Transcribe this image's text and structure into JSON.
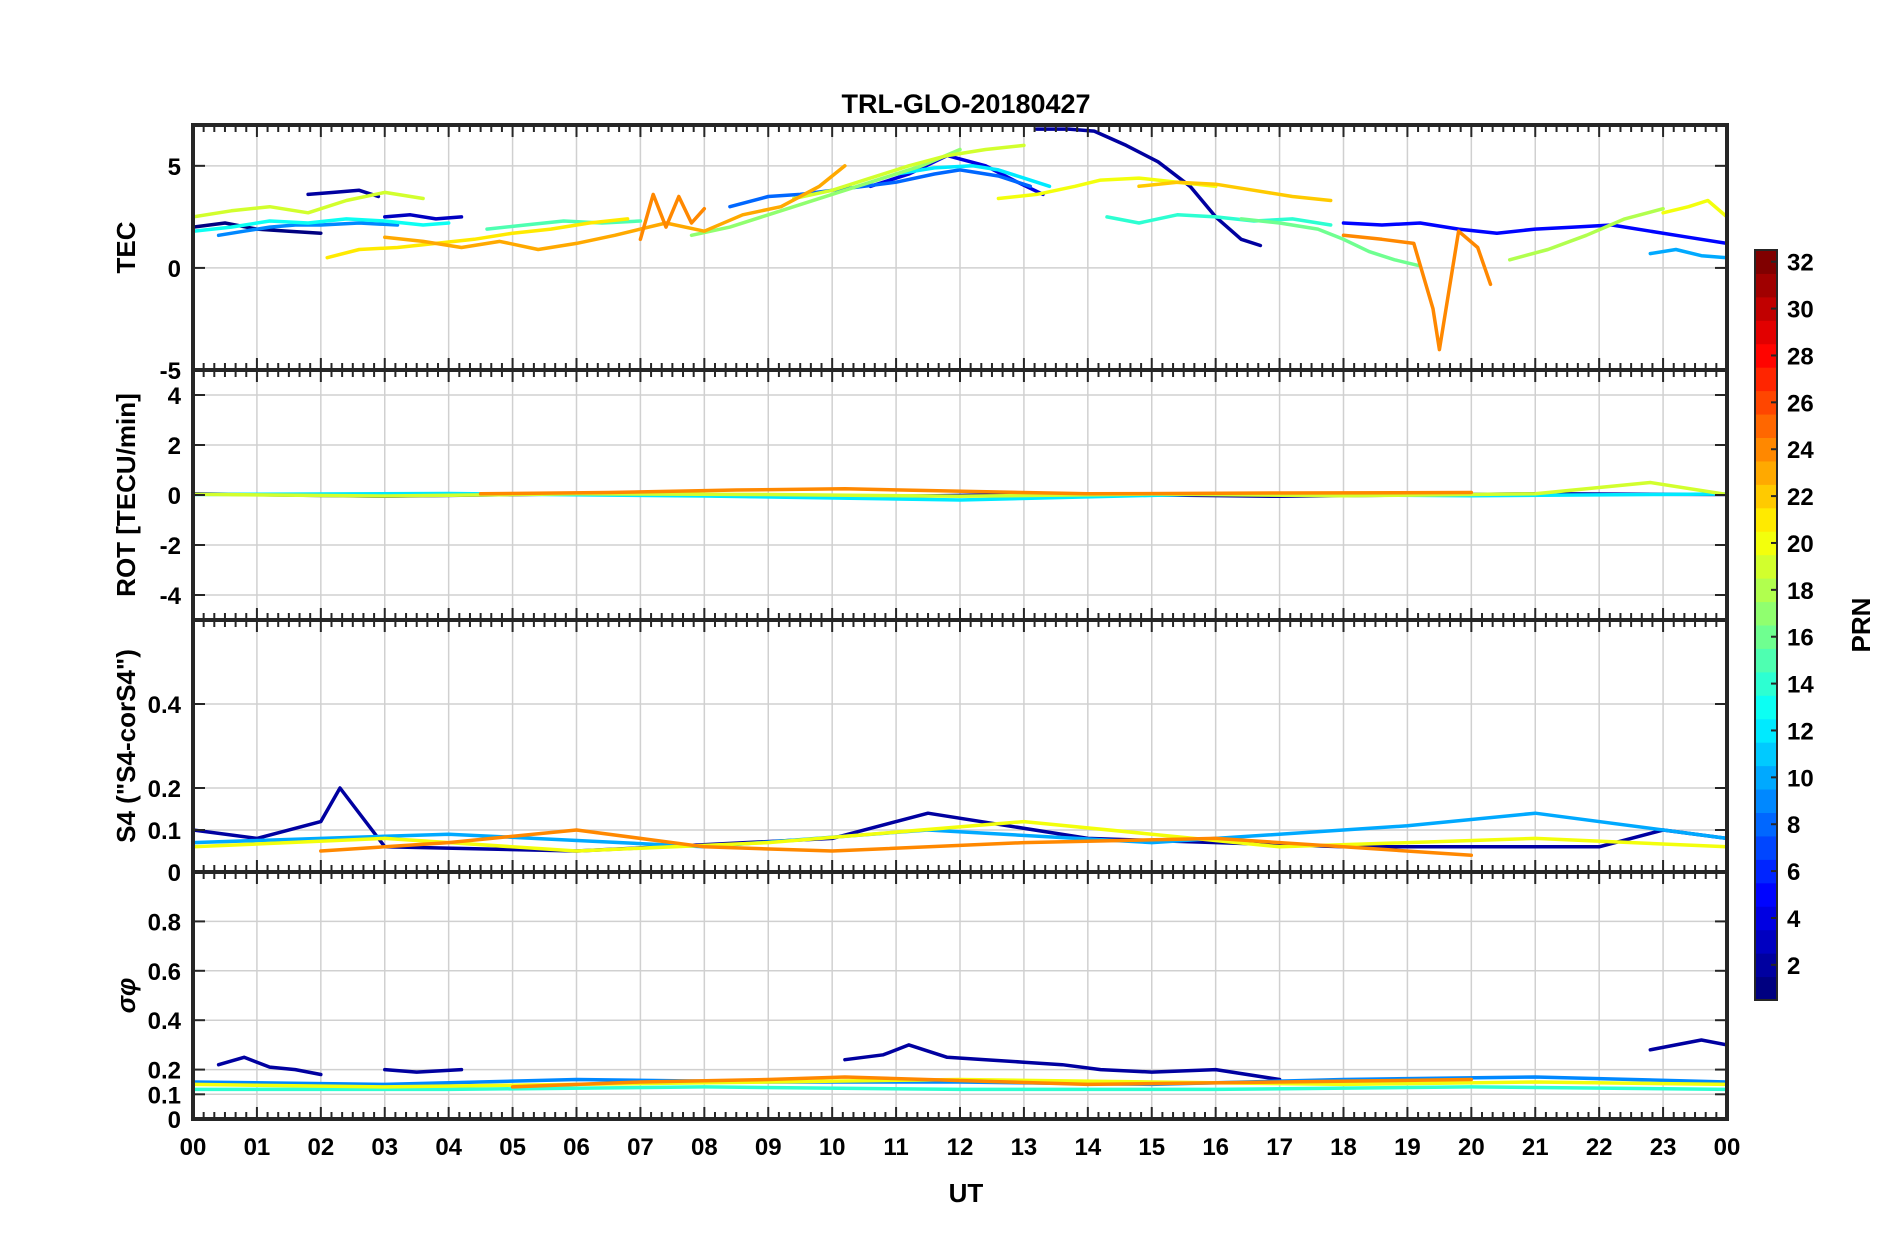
{
  "figure": {
    "title": "TRL-GLO-20180427",
    "xlabel": "UT",
    "x_tick_labels": [
      "00",
      "01",
      "02",
      "03",
      "04",
      "05",
      "06",
      "07",
      "08",
      "09",
      "10",
      "11",
      "12",
      "13",
      "14",
      "15",
      "16",
      "17",
      "18",
      "19",
      "20",
      "21",
      "22",
      "23",
      "00"
    ],
    "colorbar": {
      "label": "PRN",
      "range": [
        1,
        32
      ],
      "tick_labels": [
        "2",
        "4",
        "6",
        "8",
        "10",
        "12",
        "14",
        "16",
        "18",
        "20",
        "22",
        "24",
        "26",
        "28",
        "30",
        "32"
      ],
      "colormap": "jet"
    }
  },
  "chart_data": [
    {
      "id": "tec",
      "type": "line",
      "ylabel": "TEC",
      "xlim": [
        0,
        24
      ],
      "ylim": [
        -5,
        7
      ],
      "yticks": [
        -5,
        0,
        5
      ],
      "grid": true,
      "series": [
        {
          "prn": 1,
          "x": [
            0.0,
            0.5,
            1.0,
            1.5,
            2.0
          ],
          "y": [
            2.0,
            2.2,
            1.9,
            1.8,
            1.7
          ]
        },
        {
          "prn": 2,
          "x": [
            1.8,
            2.2,
            2.6,
            2.9
          ],
          "y": [
            3.6,
            3.7,
            3.8,
            3.5
          ]
        },
        {
          "prn": 3,
          "x": [
            3.0,
            3.4,
            3.8,
            4.2
          ],
          "y": [
            2.5,
            2.6,
            2.4,
            2.5
          ]
        },
        {
          "prn": 4,
          "x": [
            10.6,
            11.2,
            11.8,
            12.4,
            12.9,
            13.3
          ],
          "y": [
            4.0,
            4.6,
            5.5,
            5.0,
            4.2,
            3.6
          ]
        },
        {
          "prn": 2,
          "x": [
            13.2,
            13.7,
            14.1,
            14.6,
            15.1,
            15.6,
            16.0,
            16.4,
            16.7
          ],
          "y": [
            6.8,
            6.8,
            6.7,
            6.0,
            5.2,
            4.0,
            2.5,
            1.4,
            1.1
          ]
        },
        {
          "prn": 5,
          "x": [
            18.0,
            18.6,
            19.2,
            19.8,
            20.4,
            21.0,
            21.6,
            22.2,
            22.8,
            23.4,
            24.0
          ],
          "y": [
            2.2,
            2.1,
            2.2,
            1.9,
            1.7,
            1.9,
            2.0,
            2.1,
            1.8,
            1.5,
            1.2
          ]
        },
        {
          "prn": 8,
          "x": [
            8.4,
            9.0,
            9.5,
            10.0,
            10.5,
            11.0,
            11.6,
            12.0,
            12.6,
            13.1
          ],
          "y": [
            3.0,
            3.5,
            3.6,
            3.8,
            4.0,
            4.2,
            4.6,
            4.8,
            4.5,
            4.0
          ]
        },
        {
          "prn": 9,
          "x": [
            0.4,
            0.8,
            1.2,
            1.6,
            2.0,
            2.6,
            3.2
          ],
          "y": [
            1.6,
            1.8,
            2.0,
            2.1,
            2.1,
            2.2,
            2.1
          ]
        },
        {
          "prn": 10,
          "x": [
            22.8,
            23.2,
            23.6,
            24.0
          ],
          "y": [
            0.7,
            0.9,
            0.6,
            0.5
          ]
        },
        {
          "prn": 12,
          "x": [
            11.0,
            11.6,
            12.2,
            12.6,
            13.0,
            13.4
          ],
          "y": [
            4.6,
            4.9,
            5.0,
            4.8,
            4.4,
            4.0
          ]
        },
        {
          "prn": 13,
          "x": [
            0.0,
            0.6,
            1.2,
            1.8,
            2.4,
            3.0,
            3.6,
            4.0
          ],
          "y": [
            1.8,
            2.0,
            2.3,
            2.2,
            2.4,
            2.3,
            2.1,
            2.2
          ]
        },
        {
          "prn": 14,
          "x": [
            14.3,
            14.8,
            15.4,
            16.0,
            16.6,
            17.2,
            17.8
          ],
          "y": [
            2.5,
            2.2,
            2.6,
            2.5,
            2.3,
            2.4,
            2.1
          ]
        },
        {
          "prn": 15,
          "x": [
            4.6,
            5.2,
            5.8,
            6.4,
            7.0
          ],
          "y": [
            1.9,
            2.1,
            2.3,
            2.2,
            2.3
          ]
        },
        {
          "prn": 16,
          "x": [
            16.4,
            17.0,
            17.6,
            18.0,
            18.4,
            18.8,
            19.2
          ],
          "y": [
            2.4,
            2.2,
            1.9,
            1.4,
            0.8,
            0.4,
            0.1
          ]
        },
        {
          "prn": 17,
          "x": [
            7.8,
            8.4,
            9.0,
            9.6,
            10.2,
            10.8,
            11.4,
            12.0
          ],
          "y": [
            1.6,
            2.0,
            2.6,
            3.2,
            3.8,
            4.4,
            5.0,
            5.8
          ]
        },
        {
          "prn": 18,
          "x": [
            20.6,
            21.2,
            21.8,
            22.4,
            23.0
          ],
          "y": [
            0.4,
            0.9,
            1.6,
            2.4,
            2.9
          ]
        },
        {
          "prn": 19,
          "x": [
            0.0,
            0.6,
            1.2,
            1.8,
            2.4,
            3.0,
            3.6
          ],
          "y": [
            2.5,
            2.8,
            3.0,
            2.7,
            3.3,
            3.7,
            3.4
          ]
        },
        {
          "prn": 19,
          "x": [
            9.4,
            10.0,
            10.6,
            11.2,
            11.8,
            12.4,
            13.0
          ],
          "y": [
            3.4,
            3.8,
            4.4,
            5.0,
            5.5,
            5.8,
            6.0
          ]
        },
        {
          "prn": 20,
          "x": [
            12.6,
            13.2,
            13.8,
            14.2,
            14.8,
            15.4,
            16.0
          ],
          "y": [
            3.4,
            3.6,
            4.0,
            4.3,
            4.4,
            4.2,
            4.0
          ]
        },
        {
          "prn": 20,
          "x": [
            23.0,
            23.4,
            23.7,
            24.0
          ],
          "y": [
            2.7,
            3.0,
            3.3,
            2.5
          ]
        },
        {
          "prn": 21,
          "x": [
            2.1,
            2.6,
            3.2,
            3.8,
            4.4,
            5.0,
            5.6,
            6.2,
            6.8
          ],
          "y": [
            0.5,
            0.9,
            1.0,
            1.2,
            1.4,
            1.7,
            1.9,
            2.2,
            2.4
          ]
        },
        {
          "prn": 22,
          "x": [
            14.8,
            15.4,
            16.0,
            16.6,
            17.2,
            17.8
          ],
          "y": [
            4.0,
            4.2,
            4.1,
            3.8,
            3.5,
            3.3
          ]
        },
        {
          "prn": 23,
          "x": [
            3.0,
            3.6,
            4.2,
            4.8,
            5.4,
            6.0,
            6.6,
            7.0,
            7.4,
            8.0,
            8.6,
            9.2,
            9.8,
            10.2
          ],
          "y": [
            1.5,
            1.3,
            1.0,
            1.3,
            0.9,
            1.2,
            1.6,
            1.9,
            2.2,
            1.8,
            2.6,
            3.0,
            4.0,
            5.0
          ]
        },
        {
          "prn": 24,
          "x": [
            18.0,
            18.6,
            19.1,
            19.4,
            19.5,
            19.8,
            20.1,
            20.3
          ],
          "y": [
            1.6,
            1.4,
            1.2,
            -2.0,
            -4.0,
            1.8,
            1.0,
            -0.8
          ]
        },
        {
          "prn": 24,
          "x": [
            7.0,
            7.2,
            7.4,
            7.6,
            7.8,
            8.0
          ],
          "y": [
            1.4,
            3.6,
            2.0,
            3.5,
            2.2,
            2.9
          ]
        }
      ]
    },
    {
      "id": "rot",
      "type": "line",
      "ylabel": "ROT [TECU/min]",
      "xlim": [
        0,
        24
      ],
      "ylim": [
        -5,
        5
      ],
      "yticks": [
        -4,
        -2,
        0,
        2,
        4
      ],
      "grid": true,
      "series": [
        {
          "prn": 2,
          "x": [
            0.0,
            3.0,
            6.0,
            10.0,
            13.5,
            17.0,
            21.0,
            24.0
          ],
          "y": [
            0.05,
            -0.05,
            0.05,
            -0.1,
            0.05,
            -0.05,
            0.05,
            0.02
          ]
        },
        {
          "prn": 12,
          "x": [
            0.0,
            4.0,
            8.0,
            12.0,
            16.0,
            20.0,
            24.0
          ],
          "y": [
            0.02,
            0.06,
            -0.04,
            -0.2,
            0.05,
            -0.03,
            0.04
          ]
        },
        {
          "prn": 19,
          "x": [
            0.0,
            3.0,
            6.0,
            9.0,
            12.0,
            15.0,
            18.0,
            21.0,
            22.8,
            24.0
          ],
          "y": [
            0.03,
            -0.04,
            0.05,
            0.02,
            -0.05,
            0.04,
            -0.03,
            0.05,
            0.5,
            0.02
          ]
        },
        {
          "prn": 24,
          "x": [
            4.5,
            6.5,
            8.5,
            10.2,
            14.0,
            17.0,
            20.0
          ],
          "y": [
            0.05,
            0.1,
            0.2,
            0.25,
            0.05,
            0.08,
            0.1
          ]
        }
      ]
    },
    {
      "id": "s4",
      "type": "line",
      "ylabel": "S4 (\"S4-corS4\")",
      "xlim": [
        0,
        24
      ],
      "ylim": [
        0,
        0.6
      ],
      "yticks": [
        0,
        0.1,
        0.2,
        0.4
      ],
      "grid": true,
      "series": [
        {
          "prn": 2,
          "x": [
            0.0,
            1.0,
            2.0,
            2.3,
            3.0,
            6.0,
            10.0,
            11.5,
            14.0,
            18.0,
            22.0,
            23.0,
            24.0
          ],
          "y": [
            0.1,
            0.08,
            0.12,
            0.2,
            0.06,
            0.05,
            0.08,
            0.14,
            0.08,
            0.06,
            0.06,
            0.1,
            0.08
          ]
        },
        {
          "prn": 10,
          "x": [
            0.0,
            4.0,
            8.0,
            11.5,
            15.0,
            19.0,
            21.0,
            24.0
          ],
          "y": [
            0.07,
            0.09,
            0.06,
            0.1,
            0.07,
            0.11,
            0.14,
            0.08
          ]
        },
        {
          "prn": 20,
          "x": [
            0.0,
            3.0,
            6.0,
            9.0,
            13.0,
            17.0,
            21.0,
            24.0
          ],
          "y": [
            0.06,
            0.08,
            0.05,
            0.07,
            0.12,
            0.06,
            0.08,
            0.06
          ]
        },
        {
          "prn": 24,
          "x": [
            2.0,
            4.0,
            6.0,
            8.0,
            10.0,
            13.0,
            16.0,
            18.0,
            20.0
          ],
          "y": [
            0.05,
            0.07,
            0.1,
            0.06,
            0.05,
            0.07,
            0.08,
            0.06,
            0.04
          ]
        }
      ]
    },
    {
      "id": "sigma",
      "type": "line",
      "ylabel": "σφ",
      "xlim": [
        0,
        24
      ],
      "ylim": [
        0,
        1
      ],
      "yticks": [
        0,
        0.1,
        0.2,
        0.4,
        0.6,
        0.8
      ],
      "grid": true,
      "series": [
        {
          "prn": 2,
          "x": [
            0.4,
            0.8,
            1.2,
            1.6,
            2.0
          ],
          "y": [
            0.22,
            0.25,
            0.21,
            0.2,
            0.18
          ]
        },
        {
          "prn": 2,
          "x": [
            3.0,
            3.5,
            4.2
          ],
          "y": [
            0.2,
            0.19,
            0.2
          ]
        },
        {
          "prn": 2,
          "x": [
            10.2,
            10.8,
            11.2,
            11.8,
            12.4,
            13.0,
            13.6,
            14.2,
            15.0,
            16.0,
            17.0
          ],
          "y": [
            0.24,
            0.26,
            0.3,
            0.25,
            0.24,
            0.23,
            0.22,
            0.2,
            0.19,
            0.2,
            0.16
          ]
        },
        {
          "prn": 2,
          "x": [
            22.8,
            23.2,
            23.6,
            24.0
          ],
          "y": [
            0.28,
            0.3,
            0.32,
            0.3
          ]
        },
        {
          "prn": 9,
          "x": [
            0.0,
            3.0,
            6.0,
            9.0,
            12.0,
            15.0,
            18.0,
            21.0,
            24.0
          ],
          "y": [
            0.15,
            0.14,
            0.16,
            0.15,
            0.15,
            0.14,
            0.16,
            0.17,
            0.15
          ]
        },
        {
          "prn": 14,
          "x": [
            0.0,
            4.0,
            8.0,
            12.0,
            16.0,
            20.0,
            24.0
          ],
          "y": [
            0.12,
            0.12,
            0.13,
            0.12,
            0.12,
            0.13,
            0.12
          ]
        },
        {
          "prn": 20,
          "x": [
            0.0,
            3.0,
            6.0,
            9.0,
            12.0,
            15.0,
            18.0,
            21.0,
            24.0
          ],
          "y": [
            0.14,
            0.13,
            0.14,
            0.15,
            0.16,
            0.15,
            0.14,
            0.15,
            0.14
          ]
        },
        {
          "prn": 24,
          "x": [
            5.0,
            7.0,
            9.0,
            10.2,
            14.0,
            17.0,
            20.0
          ],
          "y": [
            0.13,
            0.15,
            0.16,
            0.17,
            0.14,
            0.15,
            0.16
          ]
        }
      ]
    }
  ]
}
